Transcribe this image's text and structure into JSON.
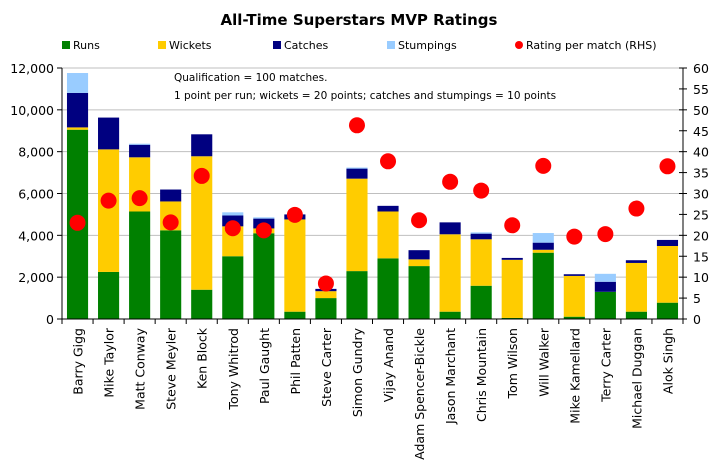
{
  "chart_data": {
    "type": "bar",
    "stacked": true,
    "title": "All-Time Superstars MVP Ratings",
    "annotation": [
      "Qualification = 100 matches.",
      "1 point per run; wickets = 20 points; catches and stumpings  = 10 points"
    ],
    "categories": [
      "Barry Gigg",
      "Mike Taylor",
      "Matt Conway",
      "Steve Meyler",
      "Ken Block",
      "Tony Whitrod",
      "Paul Gaught",
      "Phil Patten",
      "Steve Carter",
      "Simon Gundry",
      "Vijay Anand",
      "Adam Spencer-Bickle",
      "Jason Marchant",
      "Chris Mountain",
      "Tom Wilson",
      "Will Walker",
      "Mike Kamellard",
      "Terry Carter",
      "Michael Duggan",
      "Alok Singh"
    ],
    "series": [
      {
        "name": "Runs",
        "color": "#008000",
        "axis": "left",
        "kind": "bar",
        "values": [
          9050,
          2250,
          5140,
          4240,
          1400,
          3000,
          4100,
          350,
          1000,
          2290,
          2900,
          2530,
          350,
          1590,
          50,
          3170,
          110,
          1300,
          350,
          780
        ]
      },
      {
        "name": "Wickets",
        "color": "#FFCC00",
        "axis": "left",
        "kind": "bar",
        "values": [
          110,
          5860,
          2590,
          1380,
          6380,
          1430,
          230,
          4410,
          330,
          4420,
          2240,
          320,
          3700,
          2220,
          2780,
          140,
          1950,
          0,
          2330,
          2710
        ]
      },
      {
        "name": "Catches",
        "color": "#000080",
        "axis": "left",
        "kind": "bar",
        "values": [
          1650,
          1520,
          600,
          570,
          1050,
          520,
          470,
          240,
          110,
          480,
          270,
          440,
          570,
          270,
          90,
          340,
          80,
          480,
          130,
          290
        ]
      },
      {
        "name": "Stumpings",
        "color": "#99CCFF",
        "axis": "left",
        "kind": "bar",
        "values": [
          950,
          0,
          50,
          0,
          0,
          150,
          60,
          0,
          0,
          50,
          0,
          0,
          0,
          60,
          0,
          460,
          0,
          380,
          0,
          0
        ]
      },
      {
        "name": "Rating per match (RHS)",
        "color": "#FF0000",
        "axis": "right",
        "kind": "marker",
        "values": [
          23.0,
          28.3,
          28.9,
          23.1,
          34.2,
          21.7,
          21.2,
          24.9,
          8.5,
          46.3,
          37.7,
          23.6,
          32.8,
          30.7,
          22.4,
          36.6,
          19.7,
          20.3,
          26.4,
          36.5
        ]
      }
    ],
    "left_axis": {
      "ylim": [
        0,
        12000
      ],
      "ticks": [
        0,
        2000,
        4000,
        6000,
        8000,
        10000,
        12000
      ],
      "tick_labels": [
        "0",
        "2,000",
        "4,000",
        "6,000",
        "8,000",
        "10,000",
        "12,000"
      ]
    },
    "right_axis": {
      "ylim": [
        0,
        60
      ],
      "ticks": [
        0,
        5,
        10,
        15,
        20,
        25,
        30,
        35,
        40,
        45,
        50,
        55,
        60
      ],
      "tick_labels": [
        "0",
        "5",
        "10",
        "15",
        "20",
        "25",
        "30",
        "35",
        "40",
        "45",
        "50",
        "55",
        "60"
      ]
    },
    "xlabel": "",
    "ylabel": "",
    "grid": true,
    "legend_position": "top"
  }
}
